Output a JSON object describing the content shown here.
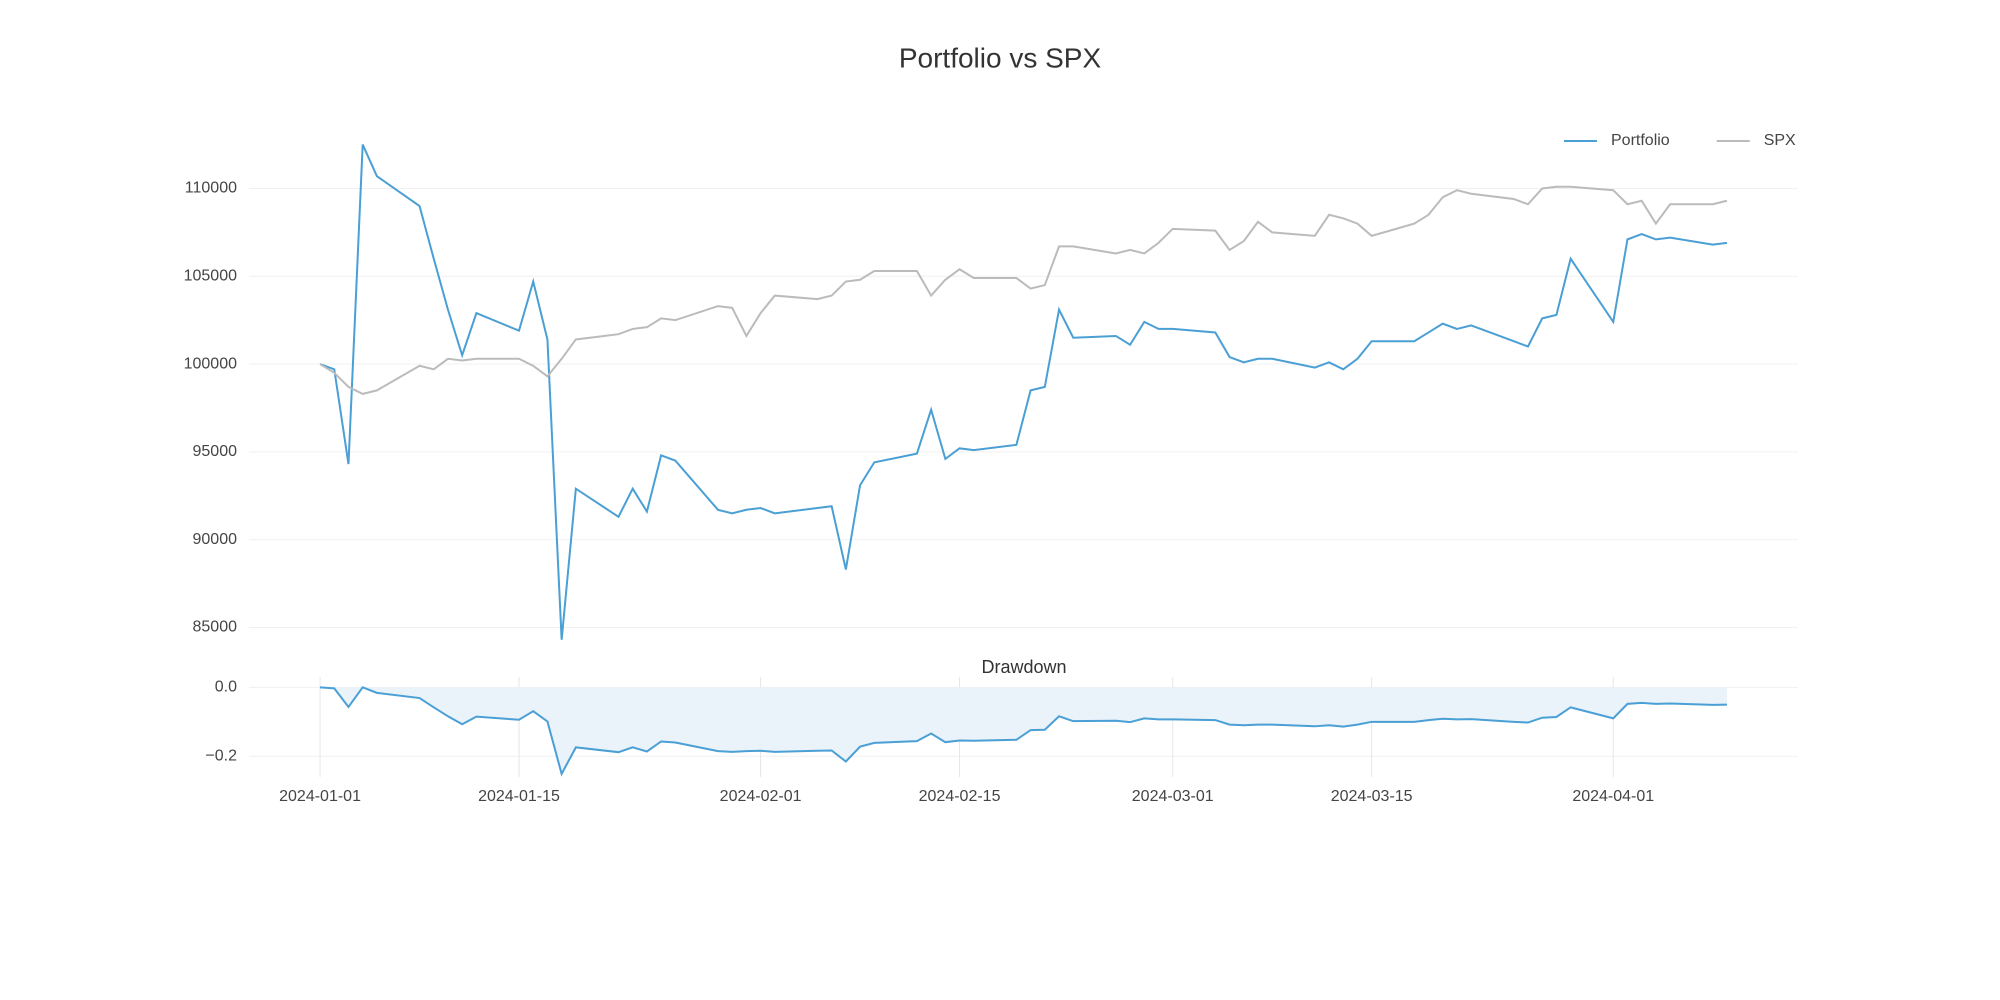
{
  "chart_data": [
    {
      "type": "line",
      "title": "Portfolio vs SPX",
      "x": [
        "2024-01-01",
        "2024-01-02",
        "2024-01-03",
        "2024-01-04",
        "2024-01-05",
        "2024-01-08",
        "2024-01-09",
        "2024-01-10",
        "2024-01-11",
        "2024-01-12",
        "2024-01-15",
        "2024-01-16",
        "2024-01-17",
        "2024-01-18",
        "2024-01-19",
        "2024-01-22",
        "2024-01-23",
        "2024-01-24",
        "2024-01-25",
        "2024-01-26",
        "2024-01-29",
        "2024-01-30",
        "2024-01-31",
        "2024-02-01",
        "2024-02-02",
        "2024-02-05",
        "2024-02-06",
        "2024-02-07",
        "2024-02-08",
        "2024-02-09",
        "2024-02-12",
        "2024-02-13",
        "2024-02-14",
        "2024-02-15",
        "2024-02-16",
        "2024-02-19",
        "2024-02-20",
        "2024-02-21",
        "2024-02-22",
        "2024-02-23",
        "2024-02-26",
        "2024-02-27",
        "2024-02-28",
        "2024-02-29",
        "2024-03-01",
        "2024-03-04",
        "2024-03-05",
        "2024-03-06",
        "2024-03-07",
        "2024-03-08",
        "2024-03-11",
        "2024-03-12",
        "2024-03-13",
        "2024-03-14",
        "2024-03-15",
        "2024-03-18",
        "2024-03-19",
        "2024-03-20",
        "2024-03-21",
        "2024-03-22",
        "2024-03-25",
        "2024-03-26",
        "2024-03-27",
        "2024-03-28",
        "2024-03-29",
        "2024-04-01",
        "2024-04-02",
        "2024-04-03",
        "2024-04-04",
        "2024-04-05",
        "2024-04-08",
        "2024-04-09"
      ],
      "series": [
        {
          "name": "Portfolio",
          "color": "#4a9fd5",
          "values": [
            100000,
            99700,
            94300,
            112500,
            110700,
            109000,
            106000,
            103100,
            100500,
            102900,
            101900,
            104700,
            101400,
            84300,
            92900,
            91300,
            92900,
            91600,
            94800,
            94500,
            91700,
            91500,
            91700,
            91800,
            91500,
            91800,
            91900,
            88300,
            93100,
            94400,
            94900,
            97400,
            94600,
            95200,
            95100,
            95400,
            98500,
            98700,
            103100,
            101500,
            101600,
            101100,
            102400,
            102000,
            102000,
            101800,
            100400,
            100100,
            100300,
            100300,
            99800,
            100100,
            99700,
            100300,
            101300,
            101300,
            101800,
            102300,
            102000,
            102200,
            101300,
            101000,
            102600,
            102800,
            106000,
            102400,
            107100,
            107400,
            107100,
            107200,
            106800,
            106900
          ]
        },
        {
          "name": "SPX",
          "color": "#bbbbbb",
          "values": [
            100000,
            99500,
            98700,
            98300,
            98500,
            99900,
            99700,
            100300,
            100200,
            100300,
            100300,
            99900,
            99300,
            100300,
            101400,
            101700,
            102000,
            102100,
            102600,
            102500,
            103300,
            103200,
            101600,
            102900,
            103900,
            103700,
            103900,
            104700,
            104800,
            105300,
            105300,
            103900,
            104800,
            105400,
            104900,
            104900,
            104300,
            104500,
            106700,
            106700,
            106300,
            106500,
            106300,
            106900,
            107700,
            107600,
            106500,
            107000,
            108100,
            107500,
            107300,
            108500,
            108300,
            108000,
            107300,
            108000,
            108500,
            109500,
            109900,
            109700,
            109400,
            109100,
            110000,
            110100,
            110100,
            109900,
            109100,
            109300,
            108000,
            109100,
            109100,
            109300
          ]
        }
      ],
      "xlim": [
        "2023-12-27",
        "2024-04-14"
      ],
      "ylim": [
        84000,
        113500
      ],
      "yticks": [
        85000,
        90000,
        95000,
        100000,
        105000,
        110000
      ],
      "grid": "y",
      "legend": "upper right"
    },
    {
      "type": "area",
      "title": "Drawdown",
      "x": [
        "2024-01-01",
        "2024-01-02",
        "2024-01-03",
        "2024-01-04",
        "2024-01-05",
        "2024-01-08",
        "2024-01-09",
        "2024-01-10",
        "2024-01-11",
        "2024-01-12",
        "2024-01-15",
        "2024-01-16",
        "2024-01-17",
        "2024-01-18",
        "2024-01-19",
        "2024-01-22",
        "2024-01-23",
        "2024-01-24",
        "2024-01-25",
        "2024-01-26",
        "2024-01-29",
        "2024-01-30",
        "2024-01-31",
        "2024-02-01",
        "2024-02-02",
        "2024-02-05",
        "2024-02-06",
        "2024-02-07",
        "2024-02-08",
        "2024-02-09",
        "2024-02-12",
        "2024-02-13",
        "2024-02-14",
        "2024-02-15",
        "2024-02-16",
        "2024-02-19",
        "2024-02-20",
        "2024-02-21",
        "2024-02-22",
        "2024-02-23",
        "2024-02-26",
        "2024-02-27",
        "2024-02-28",
        "2024-02-29",
        "2024-03-01",
        "2024-03-04",
        "2024-03-05",
        "2024-03-06",
        "2024-03-07",
        "2024-03-08",
        "2024-03-11",
        "2024-03-12",
        "2024-03-13",
        "2024-03-14",
        "2024-03-15",
        "2024-03-18",
        "2024-03-19",
        "2024-03-20",
        "2024-03-21",
        "2024-03-22",
        "2024-03-25",
        "2024-03-26",
        "2024-03-27",
        "2024-03-28",
        "2024-03-29",
        "2024-04-01",
        "2024-04-02",
        "2024-04-03",
        "2024-04-04",
        "2024-04-05",
        "2024-04-08",
        "2024-04-09"
      ],
      "series": [
        {
          "color": "#4a9fd5",
          "fill": "#eaf2fa",
          "values": [
            0,
            -0.003,
            -0.057,
            0,
            -0.016,
            -0.031,
            -0.058,
            -0.084,
            -0.107,
            -0.085,
            -0.094,
            -0.069,
            -0.099,
            -0.251,
            -0.174,
            -0.188,
            -0.174,
            -0.186,
            -0.157,
            -0.16,
            -0.185,
            -0.187,
            -0.185,
            -0.184,
            -0.187,
            -0.184,
            -0.183,
            -0.215,
            -0.172,
            -0.161,
            -0.156,
            -0.134,
            -0.159,
            -0.154,
            -0.155,
            -0.152,
            -0.124,
            -0.123,
            -0.084,
            -0.098,
            -0.097,
            -0.101,
            -0.09,
            -0.093,
            -0.093,
            -0.095,
            -0.108,
            -0.11,
            -0.108,
            -0.108,
            -0.113,
            -0.11,
            -0.114,
            -0.108,
            -0.1,
            -0.1,
            -0.095,
            -0.091,
            -0.093,
            -0.092,
            -0.1,
            -0.102,
            -0.088,
            -0.086,
            -0.058,
            -0.09,
            -0.048,
            -0.045,
            -0.048,
            -0.047,
            -0.051,
            -0.05
          ]
        }
      ],
      "xlim": [
        "2023-12-27",
        "2024-04-14"
      ],
      "xticks": [
        "2024-01-01",
        "2024-01-15",
        "2024-02-01",
        "2024-02-15",
        "2024-03-01",
        "2024-03-15",
        "2024-04-01"
      ],
      "ylim": [
        -0.26,
        0.03
      ],
      "yticks": [
        {
          "value": 0,
          "label": "0.0"
        },
        {
          "value": -0.2,
          "label": "−0.2"
        }
      ],
      "grid": "both"
    }
  ]
}
